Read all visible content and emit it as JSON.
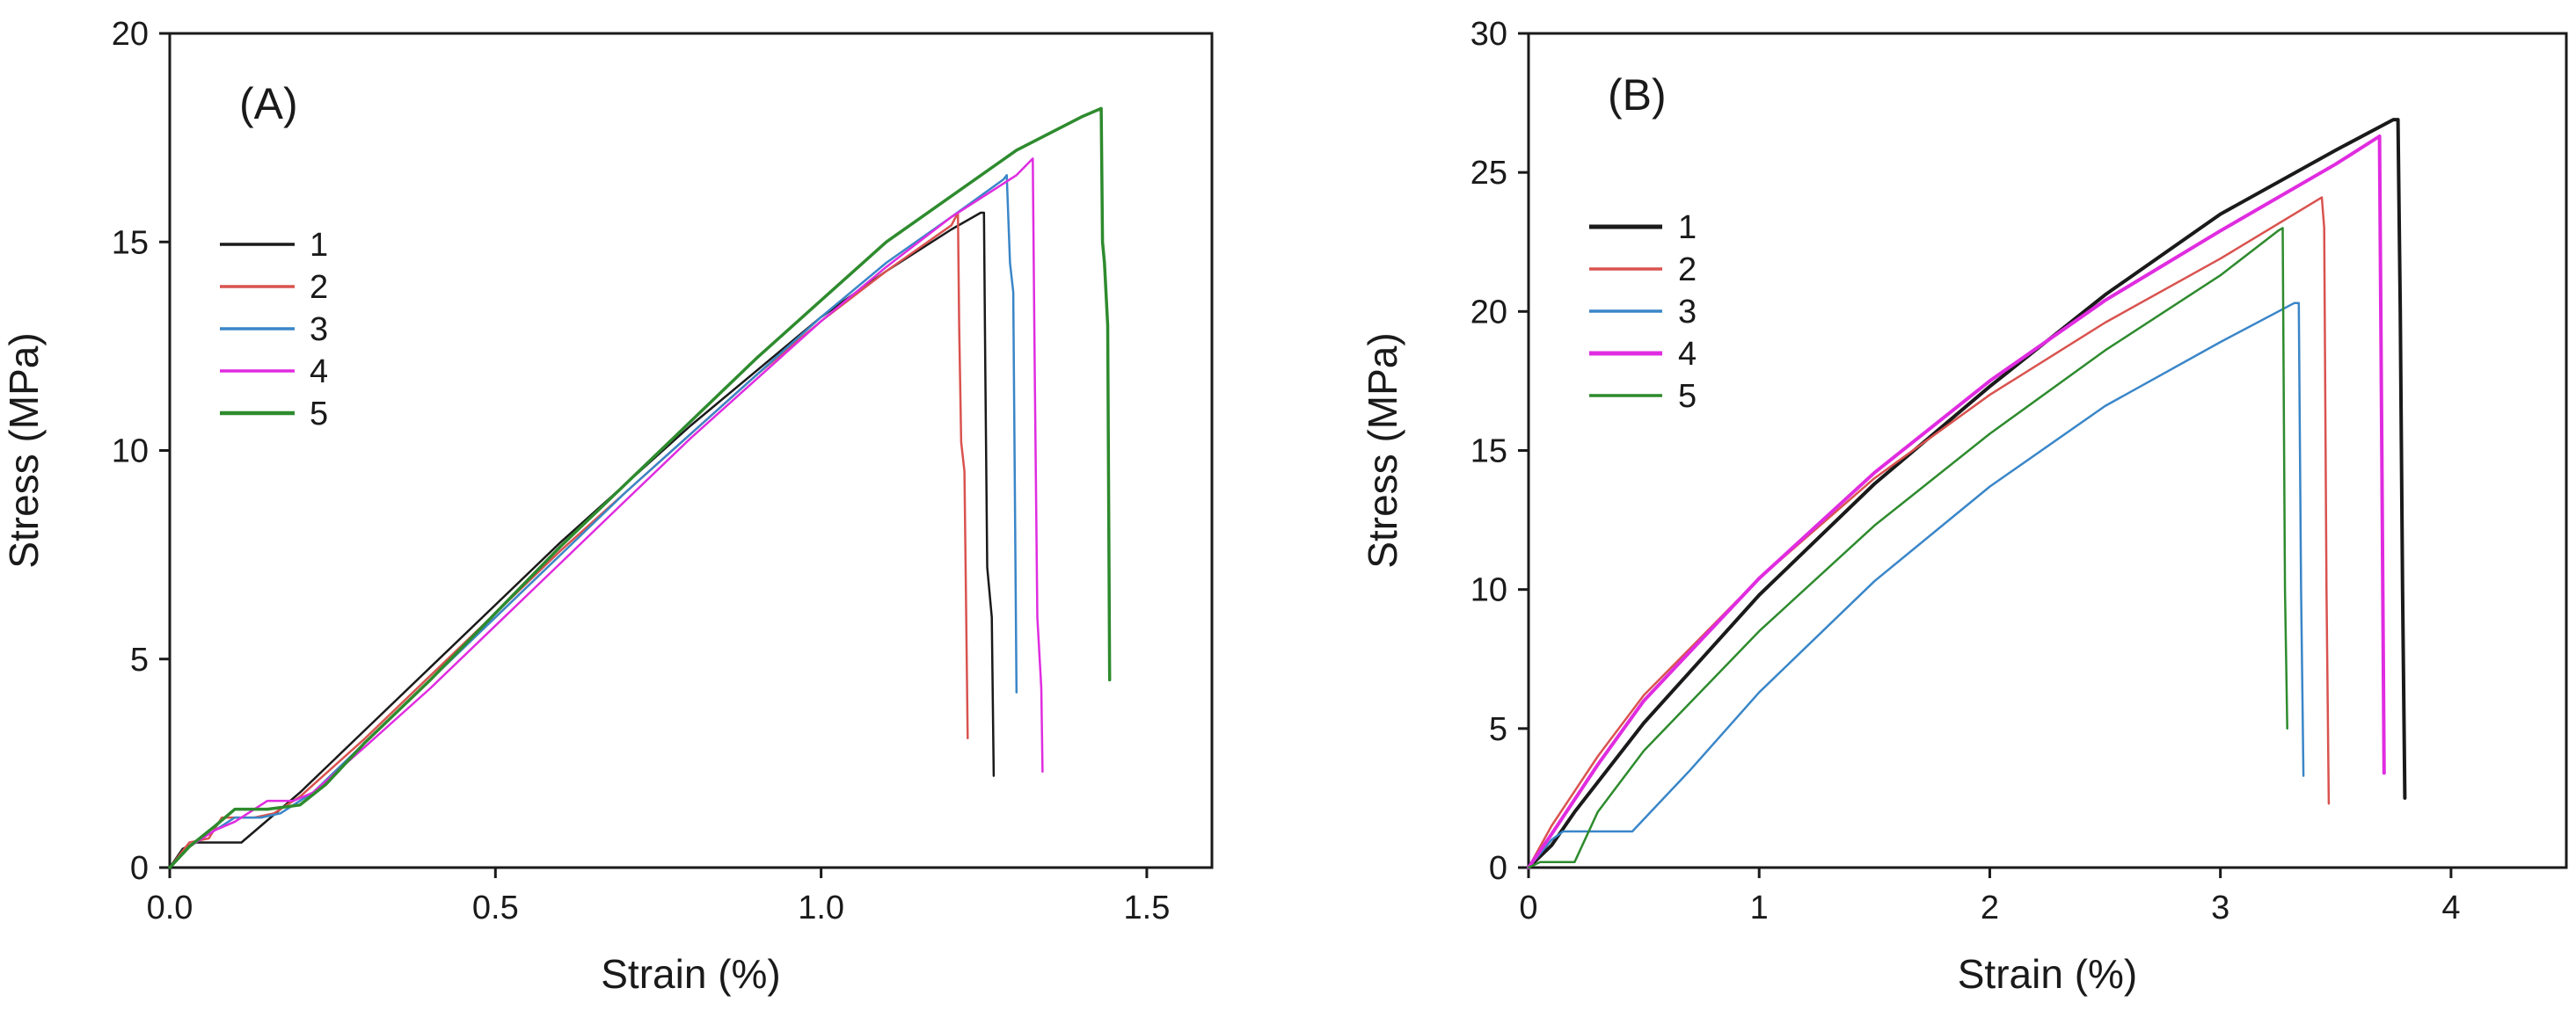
{
  "chart_data": [
    {
      "type": "line",
      "panel_label": "(A)",
      "xlabel": "Strain (%)",
      "ylabel": "Stress (MPa)",
      "xlim": [
        0,
        1.6
      ],
      "ylim": [
        0,
        20
      ],
      "xticks": [
        0.0,
        0.5,
        1.0,
        1.5
      ],
      "xtick_labels": [
        "0.0",
        "0.5",
        "1.0",
        "1.5"
      ],
      "yticks": [
        0,
        5,
        10,
        15,
        20
      ],
      "ytick_labels": [
        "0",
        "5",
        "10",
        "15",
        "20"
      ],
      "legend": [
        "1",
        "2",
        "3",
        "4",
        "5"
      ],
      "legend_position": "upper-left",
      "series": [
        {
          "name": "1",
          "color": "#1a1a1a",
          "width": 2.5,
          "points": [
            [
              0,
              0
            ],
            [
              0.02,
              0.45
            ],
            [
              0.04,
              0.6
            ],
            [
              0.06,
              0.6
            ],
            [
              0.11,
              0.6
            ],
            [
              0.14,
              1.0
            ],
            [
              0.2,
              1.8
            ],
            [
              0.3,
              3.3
            ],
            [
              0.4,
              4.8
            ],
            [
              0.5,
              6.3
            ],
            [
              0.6,
              7.8
            ],
            [
              0.7,
              9.2
            ],
            [
              0.8,
              10.6
            ],
            [
              0.9,
              11.9
            ],
            [
              1.0,
              13.2
            ],
            [
              1.1,
              14.3
            ],
            [
              1.2,
              15.3
            ],
            [
              1.245,
              15.7
            ],
            [
              1.25,
              15.7
            ],
            [
              1.252,
              12.0
            ],
            [
              1.255,
              7.2
            ],
            [
              1.262,
              6.0
            ],
            [
              1.265,
              2.2
            ]
          ]
        },
        {
          "name": "2",
          "color": "#d9534f",
          "width": 2.5,
          "points": [
            [
              0,
              0
            ],
            [
              0.03,
              0.6
            ],
            [
              0.06,
              0.7
            ],
            [
              0.08,
              1.2
            ],
            [
              0.13,
              1.2
            ],
            [
              0.16,
              1.3
            ],
            [
              0.2,
              1.7
            ],
            [
              0.3,
              3.1
            ],
            [
              0.4,
              4.6
            ],
            [
              0.5,
              6.1
            ],
            [
              0.6,
              7.6
            ],
            [
              0.7,
              9.0
            ],
            [
              0.8,
              10.4
            ],
            [
              0.9,
              11.8
            ],
            [
              1.0,
              13.1
            ],
            [
              1.1,
              14.3
            ],
            [
              1.2,
              15.4
            ],
            [
              1.21,
              15.7
            ],
            [
              1.212,
              13.0
            ],
            [
              1.215,
              10.2
            ],
            [
              1.22,
              9.5
            ],
            [
              1.225,
              3.1
            ]
          ]
        },
        {
          "name": "3",
          "color": "#3a86c8",
          "width": 2.5,
          "points": [
            [
              0,
              0
            ],
            [
              0.03,
              0.5
            ],
            [
              0.06,
              0.8
            ],
            [
              0.1,
              1.2
            ],
            [
              0.14,
              1.2
            ],
            [
              0.17,
              1.3
            ],
            [
              0.22,
              1.8
            ],
            [
              0.3,
              3.0
            ],
            [
              0.4,
              4.5
            ],
            [
              0.5,
              6.0
            ],
            [
              0.6,
              7.5
            ],
            [
              0.7,
              9.0
            ],
            [
              0.8,
              10.4
            ],
            [
              0.9,
              11.8
            ],
            [
              1.0,
              13.2
            ],
            [
              1.1,
              14.5
            ],
            [
              1.2,
              15.6
            ],
            [
              1.28,
              16.5
            ],
            [
              1.285,
              16.6
            ],
            [
              1.29,
              14.5
            ],
            [
              1.295,
              13.8
            ],
            [
              1.3,
              4.2
            ]
          ]
        },
        {
          "name": "4",
          "color": "#e02ce0",
          "width": 2.5,
          "points": [
            [
              0,
              0
            ],
            [
              0.03,
              0.5
            ],
            [
              0.07,
              0.9
            ],
            [
              0.1,
              1.1
            ],
            [
              0.15,
              1.6
            ],
            [
              0.19,
              1.6
            ],
            [
              0.22,
              1.8
            ],
            [
              0.3,
              2.9
            ],
            [
              0.4,
              4.3
            ],
            [
              0.5,
              5.8
            ],
            [
              0.6,
              7.3
            ],
            [
              0.7,
              8.8
            ],
            [
              0.8,
              10.3
            ],
            [
              0.9,
              11.7
            ],
            [
              1.0,
              13.1
            ],
            [
              1.1,
              14.4
            ],
            [
              1.2,
              15.6
            ],
            [
              1.3,
              16.6
            ],
            [
              1.325,
              17.0
            ],
            [
              1.328,
              12.0
            ],
            [
              1.332,
              6.0
            ],
            [
              1.338,
              4.3
            ],
            [
              1.34,
              2.3
            ]
          ]
        },
        {
          "name": "5",
          "color": "#2e8b2e",
          "width": 3.5,
          "points": [
            [
              0,
              0
            ],
            [
              0.03,
              0.5
            ],
            [
              0.07,
              1.0
            ],
            [
              0.1,
              1.4
            ],
            [
              0.15,
              1.4
            ],
            [
              0.2,
              1.5
            ],
            [
              0.24,
              2.0
            ],
            [
              0.3,
              3.0
            ],
            [
              0.4,
              4.5
            ],
            [
              0.5,
              6.1
            ],
            [
              0.6,
              7.7
            ],
            [
              0.7,
              9.2
            ],
            [
              0.8,
              10.7
            ],
            [
              0.9,
              12.2
            ],
            [
              1.0,
              13.6
            ],
            [
              1.1,
              15.0
            ],
            [
              1.2,
              16.1
            ],
            [
              1.3,
              17.2
            ],
            [
              1.4,
              18.0
            ],
            [
              1.43,
              18.2
            ],
            [
              1.432,
              15.0
            ],
            [
              1.435,
              14.5
            ],
            [
              1.44,
              13.0
            ],
            [
              1.443,
              4.5
            ]
          ]
        }
      ]
    },
    {
      "type": "line",
      "panel_label": "(B)",
      "xlabel": "Strain (%)",
      "ylabel": "Stress (MPa)",
      "xlim": [
        0,
        4.5
      ],
      "ylim": [
        0,
        30
      ],
      "xticks": [
        0,
        1,
        2,
        3,
        4
      ],
      "xtick_labels": [
        "0",
        "1",
        "2",
        "3",
        "4"
      ],
      "yticks": [
        0,
        5,
        10,
        15,
        20,
        25,
        30
      ],
      "ytick_labels": [
        "0",
        "5",
        "10",
        "15",
        "20",
        "25",
        "30"
      ],
      "legend": [
        "1",
        "2",
        "3",
        "4",
        "5"
      ],
      "legend_position": "upper-left",
      "series": [
        {
          "name": "1",
          "color": "#1a1a1a",
          "width": 4,
          "points": [
            [
              0,
              0
            ],
            [
              0.1,
              0.8
            ],
            [
              0.2,
              2.0
            ],
            [
              0.5,
              5.2
            ],
            [
              1.0,
              9.8
            ],
            [
              1.5,
              13.8
            ],
            [
              2.0,
              17.3
            ],
            [
              2.5,
              20.6
            ],
            [
              3.0,
              23.5
            ],
            [
              3.5,
              25.8
            ],
            [
              3.75,
              26.9
            ],
            [
              3.77,
              26.9
            ],
            [
              3.78,
              20.0
            ],
            [
              3.79,
              10.0
            ],
            [
              3.8,
              2.5
            ]
          ]
        },
        {
          "name": "2",
          "color": "#d9534f",
          "width": 2.5,
          "points": [
            [
              0,
              0
            ],
            [
              0.1,
              1.5
            ],
            [
              0.3,
              4.0
            ],
            [
              0.5,
              6.2
            ],
            [
              1.0,
              10.4
            ],
            [
              1.5,
              14.0
            ],
            [
              2.0,
              17.0
            ],
            [
              2.5,
              19.6
            ],
            [
              3.0,
              21.9
            ],
            [
              3.44,
              24.1
            ],
            [
              3.45,
              23.0
            ],
            [
              3.46,
              10.0
            ],
            [
              3.47,
              2.3
            ]
          ]
        },
        {
          "name": "3",
          "color": "#3a86c8",
          "width": 2.5,
          "points": [
            [
              0,
              0
            ],
            [
              0.1,
              1.0
            ],
            [
              0.15,
              1.3
            ],
            [
              0.45,
              1.3
            ],
            [
              0.7,
              3.5
            ],
            [
              1.0,
              6.3
            ],
            [
              1.5,
              10.3
            ],
            [
              2.0,
              13.7
            ],
            [
              2.5,
              16.6
            ],
            [
              3.0,
              18.9
            ],
            [
              3.32,
              20.3
            ],
            [
              3.34,
              20.3
            ],
            [
              3.35,
              10.0
            ],
            [
              3.36,
              3.3
            ]
          ]
        },
        {
          "name": "4",
          "color": "#e02ce0",
          "width": 4,
          "points": [
            [
              0,
              0
            ],
            [
              0.1,
              1.2
            ],
            [
              0.3,
              3.7
            ],
            [
              0.5,
              6.0
            ],
            [
              1.0,
              10.4
            ],
            [
              1.5,
              14.2
            ],
            [
              2.0,
              17.5
            ],
            [
              2.5,
              20.4
            ],
            [
              3.0,
              22.9
            ],
            [
              3.5,
              25.3
            ],
            [
              3.69,
              26.3
            ],
            [
              3.7,
              15.0
            ],
            [
              3.71,
              3.4
            ]
          ]
        },
        {
          "name": "5",
          "color": "#2e8b2e",
          "width": 2.5,
          "points": [
            [
              0,
              0
            ],
            [
              0.05,
              0.2
            ],
            [
              0.2,
              0.2
            ],
            [
              0.3,
              2.0
            ],
            [
              0.5,
              4.2
            ],
            [
              1.0,
              8.5
            ],
            [
              1.5,
              12.3
            ],
            [
              2.0,
              15.6
            ],
            [
              2.5,
              18.6
            ],
            [
              3.0,
              21.3
            ],
            [
              3.25,
              22.9
            ],
            [
              3.27,
              23.0
            ],
            [
              3.28,
              10.0
            ],
            [
              3.29,
              5.0
            ]
          ]
        }
      ]
    }
  ]
}
